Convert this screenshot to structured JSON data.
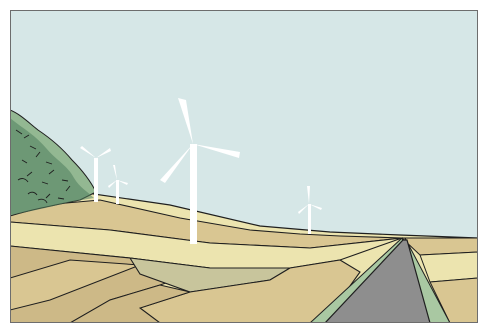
{
  "scene": {
    "colors": {
      "sky": "#d6e7e7",
      "outline": "#1f1f1f",
      "road": "#8e8e8e",
      "verge": "#a9c8a2",
      "field_tan": "#d9c692",
      "field_pale": "#ece4af",
      "field_sage": "#c8c59c",
      "field_khaki": "#cdb987",
      "tree_dark": "#4f7d5c",
      "tree_light": "#93b892",
      "turbine": "#ffffff"
    },
    "objects": {
      "trees": "tree-cluster",
      "turbines": [
        "wind-turbine",
        "wind-turbine",
        "wind-turbine",
        "wind-turbine"
      ],
      "road": "country-road",
      "fields": "patchwork-fields"
    }
  }
}
